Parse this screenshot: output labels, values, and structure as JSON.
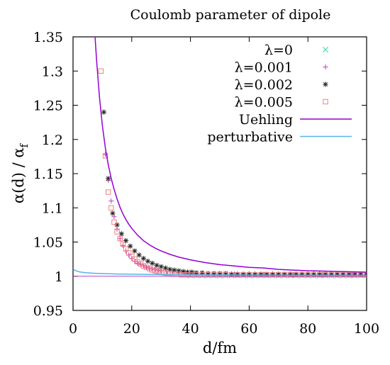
{
  "chart_data": {
    "type": "line",
    "title": "Coulomb parameter of dipole",
    "xlabel": "d/fm",
    "ylabel": "α(d) / α",
    "ylabel_subscript": "f",
    "xlim": [
      0,
      100
    ],
    "ylim": [
      0.95,
      1.35
    ],
    "xticks": [
      0,
      20,
      40,
      60,
      80,
      100
    ],
    "xtick_labels": [
      "0",
      "20",
      "40",
      "60",
      "80",
      "100"
    ],
    "yticks": [
      0.95,
      1.0,
      1.05,
      1.1,
      1.15,
      1.2,
      1.25,
      1.3,
      1.35
    ],
    "ytick_labels": [
      "0.95",
      "1",
      "1.05",
      "1.1",
      "1.15",
      "1.2",
      "1.25",
      "1.3",
      "1.35"
    ],
    "grid": false,
    "legend_position": "top-right",
    "series": [
      {
        "name": "λ=0",
        "style": "points",
        "marker": "x",
        "color": "#3bd5a0",
        "x": [
          40,
          42,
          44,
          46,
          48,
          50,
          52,
          54,
          56,
          58,
          60,
          62,
          64,
          66,
          68,
          70,
          72,
          74,
          76,
          78,
          80,
          82,
          84,
          86,
          88,
          90,
          92,
          94,
          96,
          98,
          100
        ],
        "y": [
          1.001,
          1.001,
          1.001,
          1.001,
          1.001,
          1.001,
          1.001,
          1.001,
          1.001,
          1.001,
          1.001,
          1.001,
          1.001,
          1.001,
          1.001,
          1.001,
          1.001,
          1.001,
          1.001,
          1.001,
          1.001,
          1.001,
          1.001,
          1.001,
          1.001,
          1.001,
          1.001,
          1.001,
          1.001,
          1.001,
          1.001
        ]
      },
      {
        "name": "λ=0.001",
        "style": "points",
        "marker": "plus",
        "color": "#c03fc0",
        "x": [
          11.0,
          12.0,
          13.0,
          14.0,
          15.0,
          16.0,
          17.0,
          18.0,
          19.0,
          20.0,
          21.0,
          22.0,
          23.0,
          24.0,
          25.0,
          26.0,
          27.0,
          28.0,
          29.0,
          30.0,
          32.0,
          34.0,
          36.0,
          38.0,
          40.0,
          42.0,
          44.0,
          46.0,
          48.0,
          50.0,
          55.0,
          60.0,
          65.0,
          70.0,
          75.0,
          80.0,
          85.0,
          90.0,
          95.0,
          100.0
        ],
        "y": [
          1.178,
          1.14,
          1.11,
          1.087,
          1.069,
          1.055,
          1.045,
          1.037,
          1.031,
          1.026,
          1.022,
          1.019,
          1.017,
          1.015,
          1.013,
          1.012,
          1.011,
          1.01,
          1.009,
          1.008,
          1.007,
          1.006,
          1.005,
          1.005,
          1.004,
          1.004,
          1.004,
          1.003,
          1.003,
          1.003,
          1.003,
          1.003,
          1.003,
          1.002,
          1.002,
          1.002,
          1.002,
          1.002,
          1.002,
          1.002
        ]
      },
      {
        "name": "λ=0.002",
        "style": "points",
        "marker": "star",
        "color": "#222222",
        "x": [
          10.5,
          12.0,
          13.5,
          15.0,
          16.5,
          18.0,
          19.5,
          21.0,
          22.5,
          24.0,
          25.5,
          27.0,
          28.5,
          30.0,
          31.5,
          33.0,
          34.5,
          36.0,
          37.5,
          39.0,
          40.5,
          42.0,
          44.0,
          46.0,
          48.0,
          50.0,
          52.0,
          54.0,
          56.0,
          58.0,
          60.0,
          62.0,
          64.0,
          66.0,
          68.0,
          70.0,
          72.0,
          74.0,
          76.0,
          78.0,
          80.0,
          82.0,
          84.0,
          86.0,
          88.0,
          90.0,
          92.0,
          94.0,
          96.0,
          98.0,
          100.0
        ],
        "y": [
          1.24,
          1.143,
          1.092,
          1.075,
          1.062,
          1.052,
          1.044,
          1.037,
          1.031,
          1.026,
          1.022,
          1.019,
          1.016,
          1.014,
          1.012,
          1.01,
          1.009,
          1.008,
          1.007,
          1.006,
          1.006,
          1.005,
          1.005,
          1.004,
          1.004,
          1.004,
          1.004,
          1.003,
          1.003,
          1.003,
          1.003,
          1.003,
          1.003,
          1.003,
          1.003,
          1.003,
          1.003,
          1.003,
          1.003,
          1.003,
          1.003,
          1.003,
          1.003,
          1.003,
          1.003,
          1.003,
          1.003,
          1.003,
          1.003,
          1.003,
          1.003
        ]
      },
      {
        "name": "λ=0.005",
        "style": "points",
        "marker": "open-square",
        "color": "#f08080",
        "x": [
          9.5,
          11.0,
          12.0,
          13.0,
          14.0,
          15.0,
          16.0,
          17.0,
          18.0,
          19.0,
          20.0,
          21.0,
          22.0,
          23.0,
          24.0,
          25.0,
          26.0,
          27.0,
          28.0,
          29.0,
          30.0,
          31.0,
          32.0,
          33.0,
          34.0,
          35.0,
          36.0,
          37.0,
          38.0,
          39.0,
          40.0,
          42.0,
          44.0,
          46.0,
          48.0,
          50.0,
          52.0,
          54.0,
          56.0,
          58.0,
          60.0,
          62.0,
          64.0,
          66.0,
          68.0,
          70.0,
          72.0,
          74.0,
          76.0,
          78.0,
          80.0,
          82.0,
          84.0,
          86.0,
          88.0,
          90.0,
          92.0,
          94.0,
          96.0,
          98.0,
          100.0
        ],
        "y": [
          1.3,
          1.176,
          1.123,
          1.1,
          1.079,
          1.065,
          1.055,
          1.047,
          1.04,
          1.034,
          1.029,
          1.025,
          1.021,
          1.018,
          1.015,
          1.013,
          1.011,
          1.009,
          1.008,
          1.007,
          1.006,
          1.005,
          1.004,
          1.004,
          1.003,
          1.003,
          1.003,
          1.002,
          1.002,
          1.002,
          1.002,
          1.002,
          1.002,
          1.002,
          1.002,
          1.002,
          1.002,
          1.002,
          1.002,
          1.002,
          1.002,
          1.002,
          1.002,
          1.002,
          1.002,
          1.002,
          1.002,
          1.002,
          1.002,
          1.002,
          1.002,
          1.002,
          1.002,
          1.002,
          1.002,
          1.002,
          1.002,
          1.002,
          1.002,
          1.002,
          1.002
        ]
      },
      {
        "name": "Uehling",
        "style": "line",
        "color": "#9400d3",
        "x": [
          7.5,
          8.0,
          9.0,
          10.0,
          11.0,
          12.0,
          13.0,
          14.0,
          15.0,
          16.0,
          17.0,
          18.0,
          19.0,
          20.0,
          22.0,
          24.0,
          26.0,
          28.0,
          30.0,
          33.0,
          36.0,
          40.0,
          45.0,
          50.0,
          55.0,
          60.0,
          65.0,
          70.0,
          75.0,
          80.0,
          85.0,
          90.0,
          95.0,
          100.0
        ],
        "y": [
          1.35,
          1.317,
          1.262,
          1.22,
          1.188,
          1.163,
          1.143,
          1.127,
          1.113,
          1.101,
          1.091,
          1.083,
          1.076,
          1.07,
          1.06,
          1.052,
          1.046,
          1.041,
          1.037,
          1.032,
          1.028,
          1.024,
          1.02,
          1.017,
          1.015,
          1.013,
          1.012,
          1.01,
          1.009,
          1.008,
          1.0075,
          1.007,
          1.0065,
          1.006
        ]
      },
      {
        "name": "perturbative",
        "style": "line",
        "color": "#56b4e9",
        "x": [
          0,
          0.5,
          1,
          1.5,
          2,
          3,
          4,
          6,
          8,
          10,
          15,
          20,
          30,
          40,
          60,
          80,
          100
        ],
        "y": [
          1.011,
          1.009,
          1.008,
          1.0072,
          1.0066,
          1.0058,
          1.0053,
          1.0046,
          1.0042,
          1.0039,
          1.0033,
          1.003,
          1.0025,
          1.0022,
          1.0018,
          1.0016,
          1.0014
        ]
      },
      {
        "name": "",
        "style": "line",
        "color": "#c03fc0",
        "x": [
          0,
          100
        ],
        "y": [
          1.0,
          1.0
        ]
      }
    ]
  }
}
